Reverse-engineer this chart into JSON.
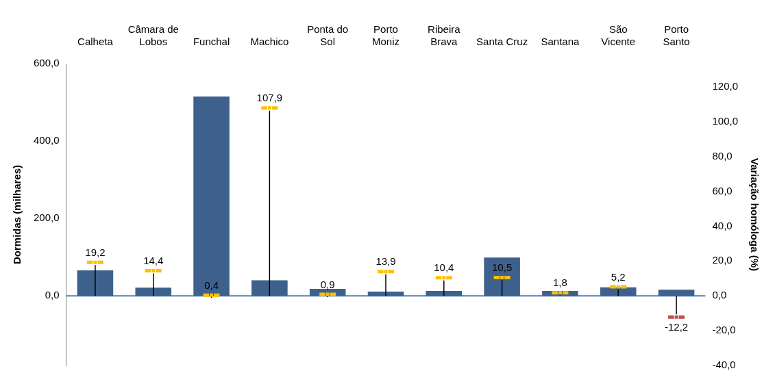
{
  "chart_data": {
    "type": "bar",
    "ylabel": "Dormidas (milhares)",
    "y2label": "Variação homóloga (%)",
    "categories": [
      "Calheta",
      "Câmara de Lobos",
      "Funchal",
      "Machico",
      "Ponta do Sol",
      "Porto Moniz",
      "Ribeira Brava",
      "Santa Cruz",
      "Santana",
      "São Vicente",
      "Porto Santo"
    ],
    "series": [
      {
        "color": "#3d618c",
        "values": [
          66,
          21,
          515,
          40,
          18,
          11,
          13,
          99,
          13,
          22,
          16
        ]
      },
      {
        "type": "lollipop",
        "axis": "y2",
        "colors": [
          "#ffc000",
          "#ffc000",
          "#ffc000",
          "#ffc000",
          "#ffc000",
          "#ffc000",
          "#ffc000",
          "#ffc000",
          "#ffc000",
          "#ffc000",
          "#c0504d"
        ],
        "values": [
          19.2,
          14.4,
          0.4,
          107.9,
          0.9,
          13.9,
          10.4,
          10.5,
          1.8,
          5.2,
          -12.2
        ],
        "value_labels": [
          "19,2",
          "14,4",
          "0,4",
          "107,9",
          "0,9",
          "13,9",
          "10,4",
          "10,5",
          "1,8",
          "5,2",
          "-12,2"
        ]
      }
    ],
    "ylim": [
      -180,
      600
    ],
    "yticks": [
      {
        "value": 0,
        "label": "0,0"
      },
      {
        "value": 200,
        "label": "200,0"
      },
      {
        "value": 400,
        "label": "400,0"
      },
      {
        "value": 600,
        "label": "600,0"
      }
    ],
    "y2lim": [
      -40,
      133.3
    ],
    "y2ticks": [
      {
        "value": -40,
        "label": "-40,0"
      },
      {
        "value": -20,
        "label": "-20,0"
      },
      {
        "value": 0,
        "label": "0,0"
      },
      {
        "value": 20,
        "label": "20,0"
      },
      {
        "value": 40,
        "label": "40,0"
      },
      {
        "value": 60,
        "label": "60,0"
      },
      {
        "value": 80,
        "label": "80,0"
      },
      {
        "value": 100,
        "label": "100,0"
      },
      {
        "value": 120,
        "label": "120,0"
      }
    ],
    "ref_lines": [
      {
        "axis": "y",
        "value": 0,
        "color": "#4f81bd"
      }
    ],
    "grid": false,
    "legend": false
  }
}
